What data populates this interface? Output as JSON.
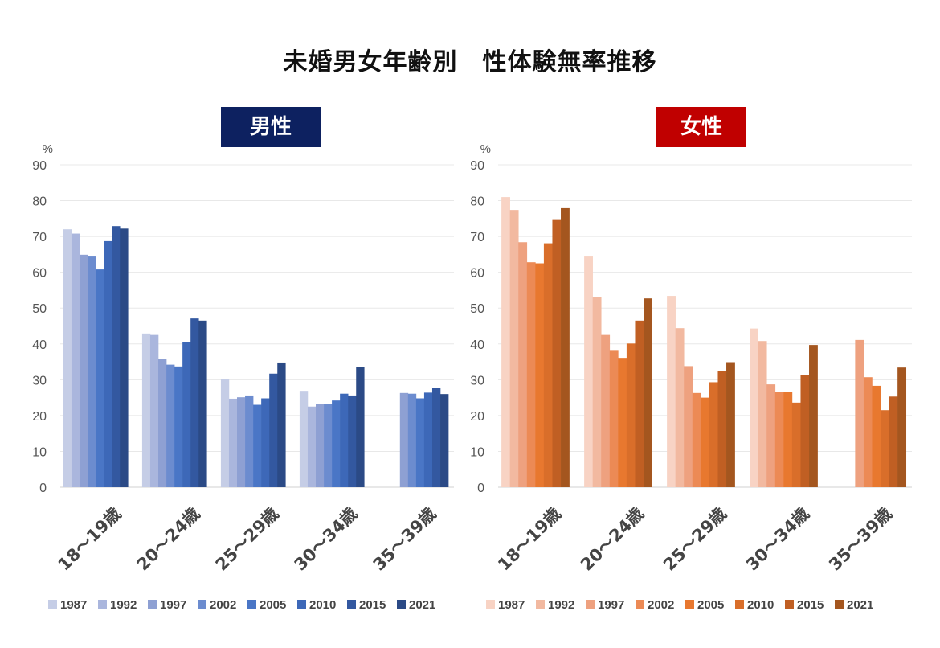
{
  "title": "未婚男女年齢別　性体験無率推移",
  "chart_data": [
    {
      "type": "bar",
      "title": "男性",
      "title_bg": "#0d2160",
      "ylabel": "%",
      "ylim": [
        0,
        90
      ],
      "yticks": [
        0,
        10,
        20,
        30,
        40,
        50,
        60,
        70,
        80,
        90
      ],
      "grid": true,
      "legend": "bottom",
      "categories": [
        "18〜19歳",
        "20〜24歳",
        "25〜29歳",
        "30〜34歳",
        "35〜39歳"
      ],
      "series": [
        {
          "name": "1987",
          "color": "#c5cde6",
          "values": [
            72.0,
            42.9,
            30.1,
            26.9,
            null
          ]
        },
        {
          "name": "1992",
          "color": "#aab6dd",
          "values": [
            70.8,
            42.5,
            24.7,
            22.5,
            null
          ]
        },
        {
          "name": "1997",
          "color": "#8ea0d3",
          "values": [
            64.9,
            35.8,
            25.1,
            23.3,
            26.3
          ]
        },
        {
          "name": "2002",
          "color": "#6c8ccf",
          "values": [
            64.4,
            34.2,
            25.6,
            23.3,
            26.1
          ]
        },
        {
          "name": "2005",
          "color": "#4a76c6",
          "values": [
            60.8,
            33.7,
            23.0,
            24.2,
            24.8
          ]
        },
        {
          "name": "2010",
          "color": "#3d68b8",
          "values": [
            68.7,
            40.5,
            24.8,
            26.1,
            26.4
          ]
        },
        {
          "name": "2015",
          "color": "#3358a0",
          "values": [
            72.9,
            47.1,
            31.7,
            25.6,
            27.7
          ]
        },
        {
          "name": "2021",
          "color": "#2b4a86",
          "values": [
            72.2,
            46.5,
            34.8,
            33.6,
            26.0
          ]
        }
      ]
    },
    {
      "type": "bar",
      "title": "女性",
      "title_bg": "#c00000",
      "ylabel": "%",
      "ylim": [
        0,
        90
      ],
      "yticks": [
        0,
        10,
        20,
        30,
        40,
        50,
        60,
        70,
        80,
        90
      ],
      "grid": true,
      "legend": "bottom",
      "categories": [
        "18〜19歳",
        "20〜24歳",
        "25〜29歳",
        "30〜34歳",
        "35〜39歳"
      ],
      "series": [
        {
          "name": "1987",
          "color": "#f8d3c4",
          "values": [
            81.0,
            64.4,
            53.4,
            44.3,
            null
          ]
        },
        {
          "name": "1992",
          "color": "#f2b9a0",
          "values": [
            77.4,
            53.1,
            44.4,
            40.8,
            null
          ]
        },
        {
          "name": "1997",
          "color": "#eea17f",
          "values": [
            68.4,
            42.5,
            33.8,
            28.7,
            41.1
          ]
        },
        {
          "name": "2002",
          "color": "#ec8a55",
          "values": [
            62.8,
            38.3,
            26.3,
            26.6,
            30.7
          ]
        },
        {
          "name": "2005",
          "color": "#e8782f",
          "values": [
            62.5,
            36.1,
            25.0,
            26.7,
            28.3
          ]
        },
        {
          "name": "2010",
          "color": "#d96e2a",
          "values": [
            68.1,
            40.1,
            29.3,
            23.6,
            21.5
          ]
        },
        {
          "name": "2015",
          "color": "#c05f23",
          "values": [
            74.6,
            46.5,
            32.5,
            31.4,
            25.3
          ]
        },
        {
          "name": "2021",
          "color": "#a4561f",
          "values": [
            77.9,
            52.7,
            34.9,
            39.7,
            33.4
          ]
        }
      ]
    }
  ]
}
